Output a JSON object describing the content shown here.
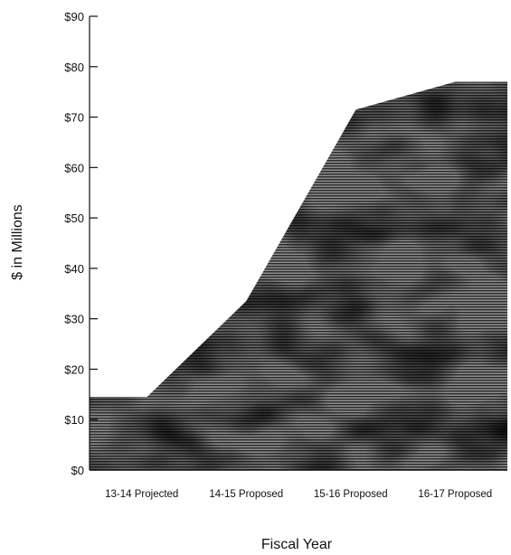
{
  "chart_data": {
    "type": "area",
    "xlabel": "Fiscal Year",
    "ylabel": "$ in Millions",
    "categories": [
      "13-14 Projected",
      "14-15 Proposed",
      "15-16 Proposed",
      "16-17 Proposed"
    ],
    "x": [
      0,
      0.55,
      1.5,
      2.55,
      3.5,
      4
    ],
    "values": [
      14.5,
      14.5,
      33.5,
      71.5,
      77,
      77
    ],
    "ylim": [
      0,
      90
    ],
    "yticks": [
      0,
      10,
      20,
      30,
      40,
      50,
      60,
      70,
      80,
      90
    ],
    "ytick_labels": [
      "$0",
      "$10",
      "$20",
      "$30",
      "$40",
      "$50",
      "$60",
      "$70",
      "$80",
      "$90"
    ],
    "grid": false,
    "fill_color": "#3a3a3a"
  }
}
